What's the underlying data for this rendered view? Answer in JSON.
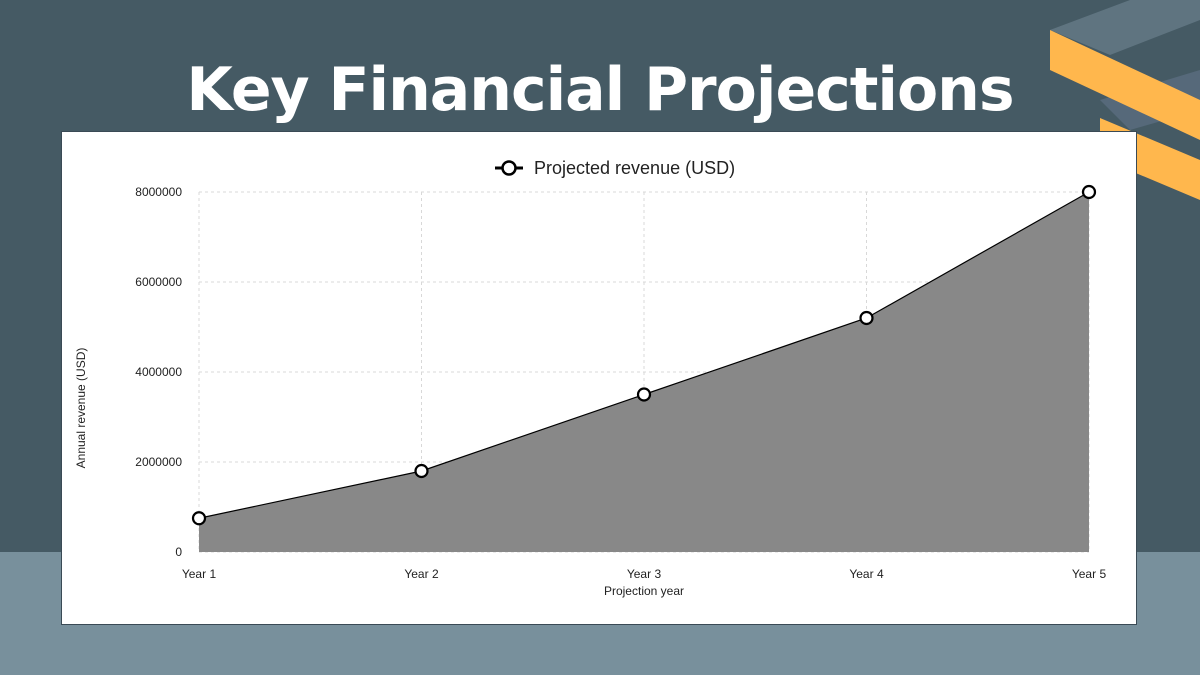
{
  "colors": {
    "background_top": "#455a64",
    "background_bottom": "#78909c",
    "accent": "#ffb74d",
    "stripe_dark": "#5f7480",
    "area_fill": "#888888",
    "line": "#000000"
  },
  "header": {
    "title": "Key Financial Projections"
  },
  "chart_data": {
    "type": "area",
    "x": [
      "Year 1",
      "Year 2",
      "Year 3",
      "Year 4",
      "Year 5"
    ],
    "series": [
      {
        "name": "Projected revenue (USD)",
        "values": [
          750000,
          1800000,
          3500000,
          5200000,
          8000000
        ]
      }
    ],
    "xlabel": "Projection year",
    "ylabel": "Annual revenue (USD)",
    "ylim": [
      0,
      8000000
    ],
    "yticks": [
      0,
      2000000,
      4000000,
      6000000,
      8000000
    ],
    "grid": true,
    "legend": "top-center",
    "markers": "hollow-circle"
  }
}
